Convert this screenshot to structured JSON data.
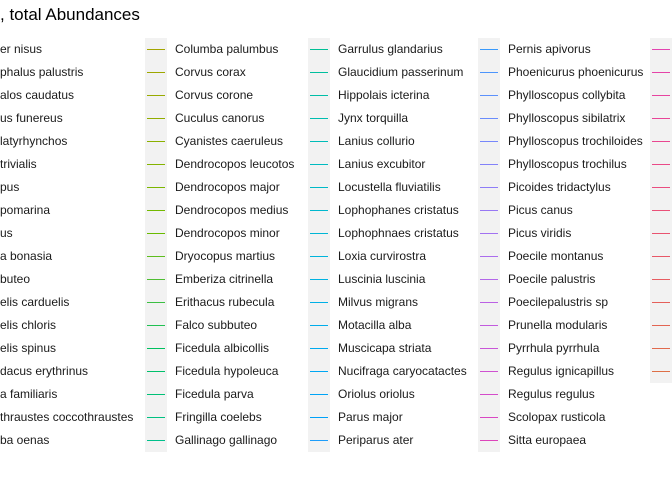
{
  "chart_data": {
    "type": "line",
    "title": ", total Abundances",
    "legend": {
      "placement": "top",
      "columns": [
        {
          "entries": [
            {
              "name": "er nisus",
              "color": "#f8766d"
            },
            {
              "name": "phalus palustris",
              "color": "#f8766d"
            },
            {
              "name": "alos caudatus",
              "color": "#f8766d"
            },
            {
              "name": "us funereus",
              "color": "#f8766d"
            },
            {
              "name": "latyrhynchos",
              "color": "#f8766d"
            },
            {
              "name": " trivialis",
              "color": "#f8766d"
            },
            {
              "name": "pus",
              "color": "#f8766d"
            },
            {
              "name": "pomarina",
              "color": "#f8766d"
            },
            {
              "name": "us",
              "color": "#f8766d"
            },
            {
              "name": "a bonasia",
              "color": "#f8766d"
            },
            {
              "name": "buteo",
              "color": "#f8766d"
            },
            {
              "name": "elis carduelis",
              "color": "#f8766d"
            },
            {
              "name": "elis chloris",
              "color": "#f8766d"
            },
            {
              "name": "elis spinus",
              "color": "#f8766d"
            },
            {
              "name": "dacus erythrinus",
              "color": "#f8766d"
            },
            {
              "name": "a familiaris",
              "color": "#f8766d"
            },
            {
              "name": "thraustes coccothraustes",
              "color": "#f8766d"
            },
            {
              "name": "ba oenas",
              "color": "#f8766d"
            }
          ]
        },
        {
          "entries": [
            {
              "name": "Columba palumbus",
              "color": "#a3a500"
            },
            {
              "name": "Corvus corax",
              "color": "#9ea700"
            },
            {
              "name": "Corvus corone",
              "color": "#98aa00"
            },
            {
              "name": "Cuculus canorus",
              "color": "#92ad00"
            },
            {
              "name": "Cyanistes caeruleus",
              "color": "#8bb000"
            },
            {
              "name": "Dendrocopos leucotos",
              "color": "#84b300"
            },
            {
              "name": "Dendrocopos major",
              "color": "#7cb600"
            },
            {
              "name": "Dendrocopos medius",
              "color": "#73b900"
            },
            {
              "name": "Dendrocopos minor",
              "color": "#69bb00"
            },
            {
              "name": "Dryocopus martius",
              "color": "#5ebd1e"
            },
            {
              "name": "Emberiza citrinella",
              "color": "#4fbe33"
            },
            {
              "name": "Erithacus rubecula",
              "color": "#3cbf43"
            },
            {
              "name": "Falco subbuteo",
              "color": "#20c052"
            },
            {
              "name": "Ficedula albicollis",
              "color": "#00c05f"
            },
            {
              "name": "Ficedula hypoleuca",
              "color": "#00c06b"
            },
            {
              "name": "Ficedula parva",
              "color": "#00c076"
            },
            {
              "name": "Fringilla coelebs",
              "color": "#00c081"
            },
            {
              "name": "Gallinago gallinago",
              "color": "#00c08b"
            }
          ]
        },
        {
          "entries": [
            {
              "name": "Garrulus glandarius",
              "color": "#00bf95"
            },
            {
              "name": "Glaucidium passerinum",
              "color": "#00bf9e"
            },
            {
              "name": "Hippolais icterina",
              "color": "#00bea7"
            },
            {
              "name": "Jynx torquilla",
              "color": "#00bdb0"
            },
            {
              "name": "Lanius collurio",
              "color": "#00bcb8"
            },
            {
              "name": "Lanius excubitor",
              "color": "#00bbc0"
            },
            {
              "name": "Locustella fluviatilis",
              "color": "#00b9c7"
            },
            {
              "name": "Lophophanes cristatus",
              "color": "#00b8ce"
            },
            {
              "name": "Lophophnaes cristatus",
              "color": "#00b6d5"
            },
            {
              "name": "Loxia curvirostra",
              "color": "#00b4db"
            },
            {
              "name": "Luscinia luscinia",
              "color": "#00b2e1"
            },
            {
              "name": "Milvus migrans",
              "color": "#00b0e6"
            },
            {
              "name": "Motacilla alba",
              "color": "#00adeb"
            },
            {
              "name": "Muscicapa striata",
              "color": "#00aaef"
            },
            {
              "name": "Nucifraga caryocatactes",
              "color": "#00a7f3"
            },
            {
              "name": "Oriolus oriolus",
              "color": "#00a4f6"
            },
            {
              "name": "Parus major",
              "color": "#00a1f8"
            },
            {
              "name": "Periparus ater",
              "color": "#1e9dfa"
            }
          ]
        },
        {
          "entries": [
            {
              "name": "Pernis apivorus",
              "color": "#3999fb"
            },
            {
              "name": "Phoenicurus phoenicurus",
              "color": "#4c95fc"
            },
            {
              "name": "Phylloscopus collybita",
              "color": "#5c91fc"
            },
            {
              "name": "Phylloscopus sibilatrix",
              "color": "#6a8cfc"
            },
            {
              "name": "Phylloscopus trochiloides",
              "color": "#7787fb"
            },
            {
              "name": "Phylloscopus trochilus",
              "color": "#8382f9"
            },
            {
              "name": "Picoides tridactylus",
              "color": "#8e7df7"
            },
            {
              "name": "Picus canus",
              "color": "#9878f4"
            },
            {
              "name": "Picus viridis",
              "color": "#a272f1"
            },
            {
              "name": "Poecile montanus",
              "color": "#ab6ded"
            },
            {
              "name": "Poecile palustris",
              "color": "#b367e9"
            },
            {
              "name": "Poecilepalustris sp",
              "color": "#bb61e4"
            },
            {
              "name": "Prunella modularis",
              "color": "#c25bde"
            },
            {
              "name": "Pyrrhula pyrrhula",
              "color": "#c956d8"
            },
            {
              "name": "Regulus ignicapillus",
              "color": "#cf51d1"
            },
            {
              "name": "Regulus regulus",
              "color": "#d44cca"
            },
            {
              "name": "Scolopax rusticola",
              "color": "#d948c3"
            },
            {
              "name": "Sitta europaea",
              "color": "#dd45bb"
            }
          ]
        },
        {
          "entries": [
            {
              "name": "",
              "color": "#e343b0"
            },
            {
              "name": "",
              "color": "#e543a8"
            },
            {
              "name": "",
              "color": "#e744a0"
            },
            {
              "name": "",
              "color": "#e84598"
            },
            {
              "name": "",
              "color": "#e94790"
            },
            {
              "name": "",
              "color": "#ea4a88"
            },
            {
              "name": "",
              "color": "#ea4d80"
            },
            {
              "name": "",
              "color": "#ea5078"
            },
            {
              "name": "",
              "color": "#e95470"
            },
            {
              "name": "",
              "color": "#e85868"
            },
            {
              "name": "",
              "color": "#e75c61"
            },
            {
              "name": "",
              "color": "#e5605a"
            },
            {
              "name": "",
              "color": "#e36553"
            },
            {
              "name": "",
              "color": "#e16a4d"
            },
            {
              "name": "",
              "color": "#de6f46"
            }
          ]
        }
      ]
    }
  }
}
